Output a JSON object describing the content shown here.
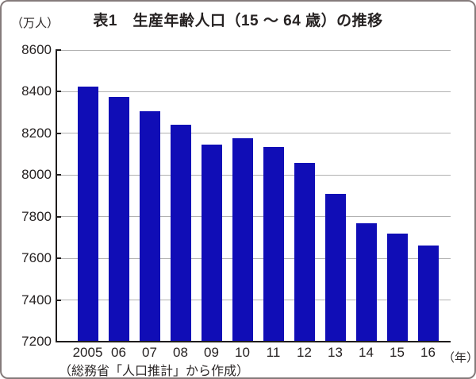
{
  "figure": {
    "title": "表1　生産年齢人口（15 ～ 64 歳）の推移",
    "y_unit_label": "（万人）",
    "x_unit_label": "（年）",
    "source_note": "（総務省「人口推計」から作成）"
  },
  "colors": {
    "bar": "#100db6",
    "gridline": "#b2b2b2",
    "axis": "#1f1c1c",
    "frame_border": "#857b7b"
  },
  "chart_data": {
    "type": "bar",
    "title": "表1　生産年齢人口（15 ～ 64 歳）の推移",
    "categories": [
      "2005",
      "06",
      "07",
      "08",
      "09",
      "10",
      "11",
      "12",
      "13",
      "14",
      "15",
      "16"
    ],
    "values": [
      8425,
      8375,
      8305,
      8240,
      8145,
      8175,
      8135,
      8060,
      7910,
      7770,
      7720,
      7660
    ],
    "xlabel": "（年）",
    "ylabel": "（万人）",
    "ylim": [
      7200,
      8600
    ],
    "ytick_step": 200,
    "grid": true,
    "legend": null,
    "source": "（総務省「人口推計」から作成）"
  }
}
